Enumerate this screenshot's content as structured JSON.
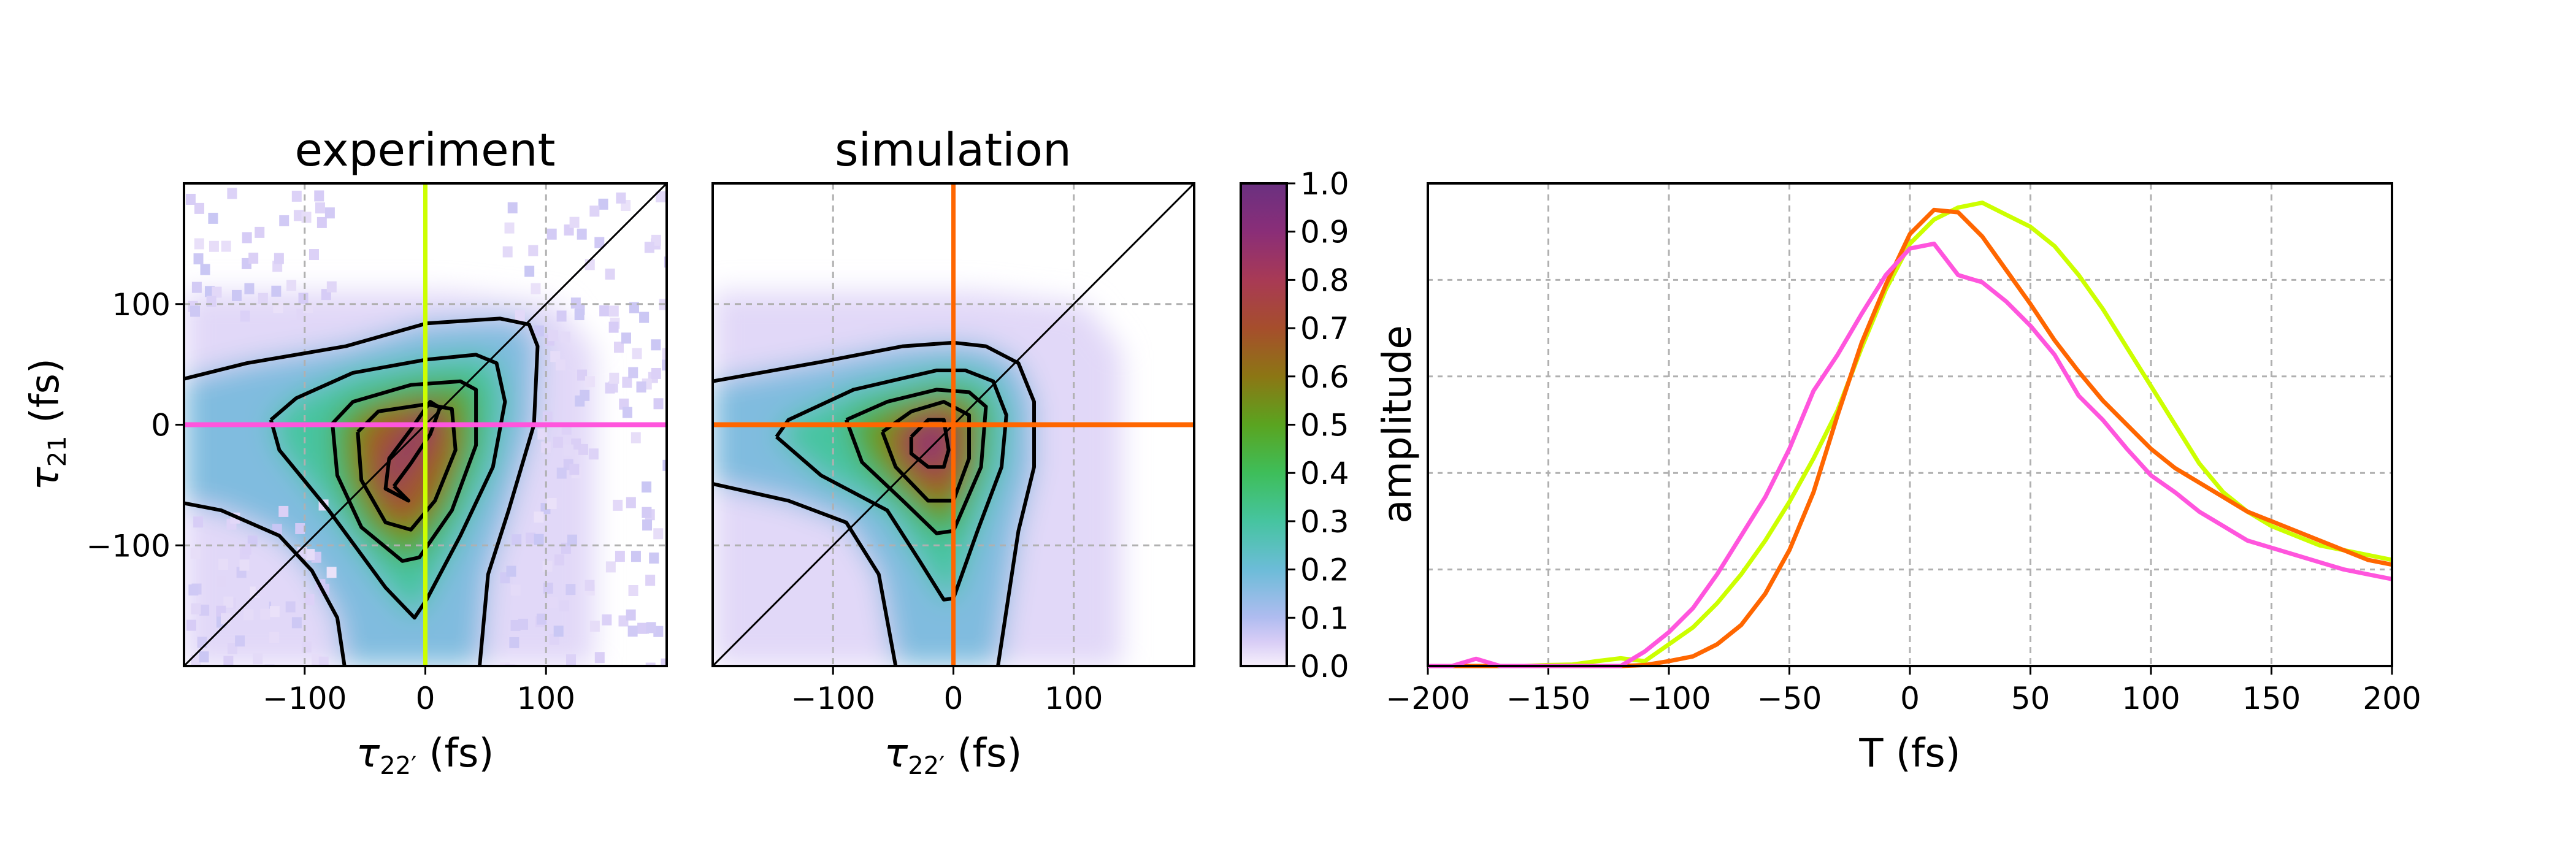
{
  "colors": {
    "experiment_vertical_line": "#ccff00",
    "experiment_horizontal_line": "#ff55dd",
    "simulation_lines": "#ff6600",
    "grid": "#b0b0b0",
    "colormap": [
      [
        0.0,
        "#f7f0fb"
      ],
      [
        0.05,
        "#d8cdf6"
      ],
      [
        0.1,
        "#b0bcf0"
      ],
      [
        0.2,
        "#6cbcd8"
      ],
      [
        0.3,
        "#46c4a0"
      ],
      [
        0.4,
        "#3ebe5a"
      ],
      [
        0.5,
        "#5aa420"
      ],
      [
        0.6,
        "#8c7614"
      ],
      [
        0.7,
        "#a64e2c"
      ],
      [
        0.8,
        "#a83a55"
      ],
      [
        0.9,
        "#8a2e78"
      ],
      [
        1.0,
        "#6a3080"
      ]
    ]
  },
  "chart_data": [
    {
      "type": "heatmap",
      "title": "experiment",
      "xlabel": {
        "symbol": "τ",
        "sub": "22′",
        "unit": " (fs)"
      },
      "ylabel": {
        "symbol": "τ",
        "sub": "21",
        "unit": " (fs)"
      },
      "xlim": [
        -200,
        200
      ],
      "ylim": [
        -200,
        200
      ],
      "xticks": [
        -100,
        0,
        100
      ],
      "yticks": [
        100,
        0,
        -100
      ],
      "grid": true,
      "peak": [
        -15,
        -35
      ],
      "crosshair": {
        "vertical_x": 0,
        "horizontal_y": 0
      },
      "diagonal": "y = x",
      "contours": [
        [
          [
            -200,
            38
          ],
          [
            -148,
            51
          ],
          [
            -66,
            65
          ],
          [
            1,
            84
          ],
          [
            62,
            88
          ],
          [
            86,
            83
          ],
          [
            93,
            65
          ],
          [
            90,
            0
          ],
          [
            69,
            -71
          ],
          [
            52,
            -124
          ],
          [
            45,
            -200
          ]
        ],
        [
          [
            -200,
            -65
          ],
          [
            -169,
            -71
          ],
          [
            -121,
            -92
          ],
          [
            -94,
            -121
          ],
          [
            -73,
            -160
          ],
          [
            -67,
            -200
          ]
        ],
        [
          [
            -128,
            4
          ],
          [
            -107,
            22
          ],
          [
            -60,
            43
          ],
          [
            1,
            54
          ],
          [
            42,
            58
          ],
          [
            59,
            51
          ],
          [
            66,
            19
          ],
          [
            56,
            -35
          ],
          [
            29,
            -92
          ],
          [
            1,
            -145
          ],
          [
            -9,
            -160
          ],
          [
            -33,
            -135
          ],
          [
            -80,
            -71
          ],
          [
            -121,
            -21
          ],
          [
            -128,
            4
          ]
        ],
        [
          [
            -77,
            1
          ],
          [
            -60,
            19
          ],
          [
            -12,
            33
          ],
          [
            29,
            36
          ],
          [
            42,
            29
          ],
          [
            42,
            -17
          ],
          [
            22,
            -71
          ],
          [
            -5,
            -110
          ],
          [
            -19,
            -113
          ],
          [
            -53,
            -85
          ],
          [
            -73,
            -42
          ],
          [
            -77,
            1
          ]
        ],
        [
          [
            -56,
            -6
          ],
          [
            -39,
            11
          ],
          [
            1,
            17
          ],
          [
            22,
            13
          ],
          [
            25,
            -21
          ],
          [
            8,
            -63
          ],
          [
            -12,
            -87
          ],
          [
            -33,
            -81
          ],
          [
            -53,
            -46
          ],
          [
            -56,
            -6
          ]
        ],
        [
          [
            -26,
            -51
          ],
          [
            -12,
            -32
          ],
          [
            4,
            -8
          ],
          [
            12,
            14
          ],
          [
            4,
            19
          ],
          [
            -12,
            -4
          ],
          [
            -30,
            -28
          ],
          [
            -33,
            -53
          ],
          [
            -14,
            -63
          ],
          [
            -26,
            -51
          ]
        ]
      ]
    },
    {
      "type": "heatmap",
      "title": "simulation",
      "xlabel": {
        "symbol": "τ",
        "sub": "22′",
        "unit": " (fs)"
      },
      "xlim": [
        -200,
        200
      ],
      "ylim": [
        -200,
        200
      ],
      "xticks": [
        -100,
        0,
        100
      ],
      "grid": true,
      "peak": [
        -12,
        -18
      ],
      "crosshair": {
        "vertical_x": 0,
        "horizontal_y": 0
      },
      "diagonal": "y = x",
      "contours": [
        [
          [
            -200,
            36
          ],
          [
            -110,
            52
          ],
          [
            -42,
            65
          ],
          [
            0,
            68
          ],
          [
            27,
            65
          ],
          [
            54,
            51
          ],
          [
            67,
            19
          ],
          [
            67,
            -35
          ],
          [
            54,
            -88
          ],
          [
            37,
            -200
          ]
        ],
        [
          [
            -200,
            -49
          ],
          [
            -137,
            -63
          ],
          [
            -89,
            -81
          ],
          [
            -62,
            -124
          ],
          [
            -48,
            -200
          ]
        ],
        [
          [
            -147,
            -10
          ],
          [
            -137,
            4
          ],
          [
            -83,
            29
          ],
          [
            -14,
            45
          ],
          [
            10,
            45
          ],
          [
            33,
            36
          ],
          [
            44,
            8
          ],
          [
            40,
            -35
          ],
          [
            20,
            -88
          ],
          [
            0,
            -144
          ],
          [
            -8,
            -145
          ],
          [
            -28,
            -113
          ],
          [
            -55,
            -71
          ],
          [
            -110,
            -42
          ],
          [
            -147,
            -10
          ]
        ],
        [
          [
            -89,
            4
          ],
          [
            -55,
            19
          ],
          [
            -14,
            29
          ],
          [
            13,
            27
          ],
          [
            27,
            15
          ],
          [
            23,
            -35
          ],
          [
            0,
            -88
          ],
          [
            -14,
            -90
          ],
          [
            -42,
            -63
          ],
          [
            -76,
            -31
          ],
          [
            -89,
            4
          ]
        ],
        [
          [
            -59,
            -6
          ],
          [
            -35,
            11
          ],
          [
            -8,
            19
          ],
          [
            13,
            8
          ],
          [
            13,
            -28
          ],
          [
            0,
            -63
          ],
          [
            -21,
            -63
          ],
          [
            -48,
            -35
          ],
          [
            -59,
            -6
          ]
        ],
        [
          [
            -35,
            -10
          ],
          [
            -21,
            4
          ],
          [
            -8,
            4
          ],
          [
            -4,
            -21
          ],
          [
            -8,
            -35
          ],
          [
            -21,
            -35
          ],
          [
            -35,
            -24
          ],
          [
            -35,
            -10
          ]
        ]
      ]
    },
    {
      "type": "colorbar",
      "label": "amplitude",
      "range": [
        0,
        1
      ],
      "ticks": [
        "0.0",
        "0.1",
        "0.2",
        "0.3",
        "0.4",
        "0.5",
        "0.6",
        "0.7",
        "0.8",
        "0.9",
        "1.0"
      ]
    },
    {
      "type": "line",
      "xlabel": "T (fs)",
      "xlim": [
        -200,
        200
      ],
      "ylim": [
        0,
        1
      ],
      "xticks": [
        -200,
        -150,
        -100,
        -50,
        0,
        50,
        100,
        150,
        200
      ],
      "ygrid": [
        0.2,
        0.4,
        0.6,
        0.8
      ],
      "grid": true,
      "x": [
        -200,
        -190,
        -180,
        -170,
        -160,
        -150,
        -140,
        -130,
        -120,
        -110,
        -100,
        -90,
        -80,
        -70,
        -60,
        -50,
        -40,
        -30,
        -20,
        -10,
        0,
        10,
        20,
        30,
        40,
        50,
        60,
        70,
        80,
        90,
        100,
        110,
        120,
        130,
        140,
        150,
        160,
        170,
        180,
        190,
        200
      ],
      "series": [
        {
          "color": "#ccff00",
          "values": [
            0,
            0,
            0,
            0,
            0,
            0.002,
            0.003,
            0.01,
            0.016,
            0.01,
            0.045,
            0.08,
            0.13,
            0.19,
            0.26,
            0.34,
            0.43,
            0.53,
            0.66,
            0.78,
            0.875,
            0.925,
            0.95,
            0.96,
            0.935,
            0.91,
            0.87,
            0.81,
            0.74,
            0.66,
            0.58,
            0.5,
            0.42,
            0.36,
            0.32,
            0.29,
            0.27,
            0.25,
            0.24,
            0.23,
            0.22
          ]
        },
        {
          "color": "#ff6600",
          "values": [
            0,
            0,
            0,
            0,
            0,
            0,
            0,
            0,
            0,
            0.002,
            0.01,
            0.02,
            0.045,
            0.085,
            0.15,
            0.24,
            0.36,
            0.52,
            0.67,
            0.79,
            0.895,
            0.945,
            0.94,
            0.89,
            0.82,
            0.75,
            0.675,
            0.61,
            0.55,
            0.5,
            0.45,
            0.41,
            0.38,
            0.35,
            0.32,
            0.3,
            0.28,
            0.26,
            0.24,
            0.22,
            0.21
          ]
        },
        {
          "color": "#ff55dd",
          "values": [
            0,
            0,
            0.015,
            0,
            0,
            0,
            0,
            0,
            0,
            0.03,
            0.07,
            0.12,
            0.19,
            0.27,
            0.35,
            0.45,
            0.57,
            0.645,
            0.73,
            0.81,
            0.865,
            0.875,
            0.81,
            0.795,
            0.755,
            0.705,
            0.645,
            0.56,
            0.51,
            0.45,
            0.395,
            0.36,
            0.32,
            0.29,
            0.26,
            0.245,
            0.23,
            0.215,
            0.2,
            0.19,
            0.18
          ]
        }
      ]
    }
  ]
}
